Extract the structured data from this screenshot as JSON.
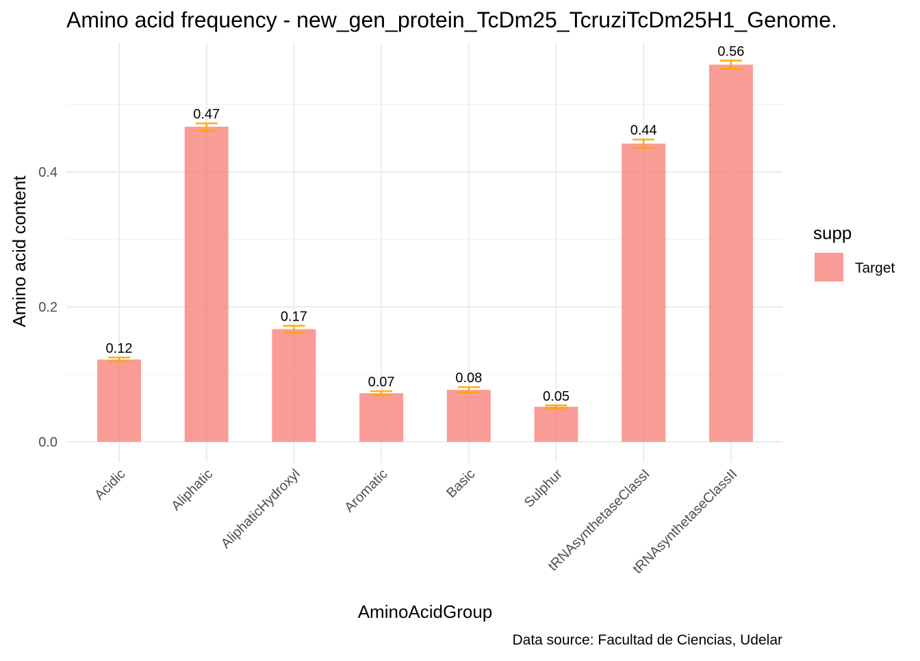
{
  "chart_data": {
    "type": "bar",
    "title": "Amino acid frequency - new_gen_protein_TcDm25_TcruziTcDm25H1_Genome.",
    "xlabel": "AminoAcidGroup",
    "ylabel": "Amino acid content",
    "caption": "Data source: Facultad de Ciencias, Udelar",
    "categories": [
      "Acidic",
      "Aliphatic",
      "AliphaticHydroxyl",
      "Aromatic",
      "Basic",
      "Sulphur",
      "tRNAsynthetaseClassI",
      "tRNAsynthetaseClassII"
    ],
    "series": [
      {
        "name": "Target",
        "values": [
          0.122,
          0.467,
          0.167,
          0.072,
          0.077,
          0.052,
          0.442,
          0.559
        ],
        "labels": [
          "0.12",
          "0.47",
          "0.17",
          "0.07",
          "0.08",
          "0.05",
          "0.44",
          "0.56"
        ],
        "error_low": [
          0.119,
          0.461,
          0.162,
          0.069,
          0.073,
          0.05,
          0.436,
          0.553
        ],
        "error_high": [
          0.125,
          0.472,
          0.172,
          0.075,
          0.081,
          0.054,
          0.448,
          0.565
        ],
        "color": "#f8766d",
        "error_color": "#ffa500"
      }
    ],
    "ylim": [
      -0.02,
      0.59
    ],
    "yticks": [
      0.0,
      0.2,
      0.4
    ],
    "ytick_labels": [
      "0.0",
      "0.2",
      "0.4"
    ],
    "y_minor_ticks": [
      0.1,
      0.3,
      0.5
    ],
    "grid": true,
    "legend": {
      "title": "supp",
      "position": "right",
      "entries": [
        "Target"
      ]
    },
    "x_tick_rotation": 45
  }
}
